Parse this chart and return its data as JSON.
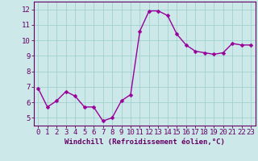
{
  "x": [
    0,
    1,
    2,
    3,
    4,
    5,
    6,
    7,
    8,
    9,
    10,
    11,
    12,
    13,
    14,
    15,
    16,
    17,
    18,
    19,
    20,
    21,
    22,
    23
  ],
  "y": [
    6.9,
    5.7,
    6.1,
    6.7,
    6.4,
    5.7,
    5.7,
    4.8,
    5.0,
    6.1,
    6.5,
    10.6,
    11.9,
    11.9,
    11.6,
    10.4,
    9.7,
    9.3,
    9.2,
    9.1,
    9.2,
    9.8,
    9.7,
    9.7
  ],
  "line_color": "#990099",
  "marker_color": "#990099",
  "bg_color": "#cce8e8",
  "grid_color": "#99cccc",
  "xlabel": "Windchill (Refroidissement éolien,°C)",
  "ylim": [
    4.5,
    12.5
  ],
  "xlim": [
    -0.5,
    23.5
  ],
  "yticks": [
    5,
    6,
    7,
    8,
    9,
    10,
    11,
    12
  ],
  "xticks": [
    0,
    1,
    2,
    3,
    4,
    5,
    6,
    7,
    8,
    9,
    10,
    11,
    12,
    13,
    14,
    15,
    16,
    17,
    18,
    19,
    20,
    21,
    22,
    23
  ],
  "tick_color": "#660066",
  "spine_color": "#660066",
  "xlabel_color": "#660066",
  "font_size": 6.5,
  "xlabel_fontsize": 6.5,
  "marker_size": 2.5,
  "line_width": 1.0
}
